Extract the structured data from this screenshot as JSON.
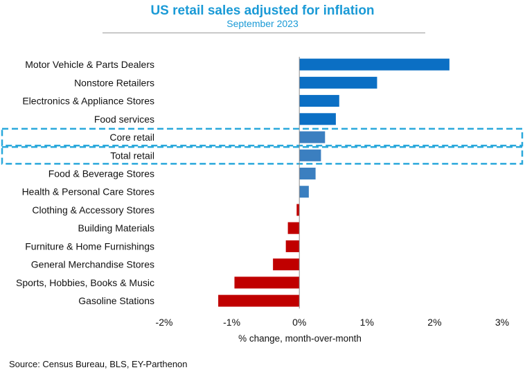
{
  "chart_data": {
    "type": "bar",
    "orientation": "horizontal",
    "title": "US retail sales adjusted for inflation",
    "subtitle": "September 2023",
    "xlabel": "% change, month-over-month",
    "ylabel": "",
    "xlim": [
      -0.02,
      0.03
    ],
    "xticks": [
      -0.02,
      -0.01,
      0,
      0.01,
      0.02,
      0.03
    ],
    "xtick_labels": [
      "-2%",
      "-1%",
      "0%",
      "1%",
      "2%",
      "3%"
    ],
    "grid": false,
    "categories": [
      "Motor Vehicle & Parts Dealers",
      "Nonstore Retailers",
      "Electronics & Appliance Stores",
      "Food services",
      "Core retail",
      "Total retail",
      "Food & Beverage Stores",
      "Health & Personal Care Stores",
      "Clothing & Accessory Stores",
      "Building Materials",
      "Furniture & Home Furnishings",
      "General Merchandise Stores",
      "Sports, Hobbies, Books & Music",
      "Gasoline Stations"
    ],
    "values": [
      0.0222,
      0.0115,
      0.0059,
      0.0054,
      0.0038,
      0.0032,
      0.0024,
      0.0014,
      -0.0004,
      -0.0017,
      -0.002,
      -0.0039,
      -0.0096,
      -0.012
    ],
    "highlighted": [
      "Core retail",
      "Total retail"
    ],
    "colors": {
      "positive": "#0b6fc4",
      "positive_light": "#3b7fc0",
      "negative": "#c00000",
      "highlight_box": "#29a8db"
    }
  },
  "header": {
    "title": "US retail sales adjusted for inflation",
    "subtitle": "September 2023",
    "title_color": "#1a9ad6"
  },
  "footer": {
    "source": "Source: Census Bureau, BLS, EY-Parthenon"
  }
}
